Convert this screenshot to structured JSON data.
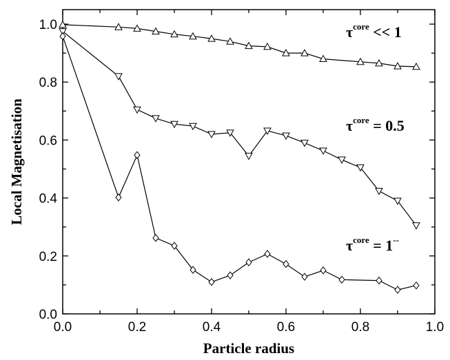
{
  "chart_data": {
    "type": "line",
    "xlabel": "Particle radius",
    "ylabel": "Local Magnetisation",
    "xlim": [
      0.0,
      1.0
    ],
    "ylim": [
      0.0,
      1.05
    ],
    "x_ticks": [
      "0.0",
      "0.2",
      "0.4",
      "0.6",
      "0.8",
      "1.0"
    ],
    "y_ticks": [
      "0.0",
      "0.2",
      "0.4",
      "0.6",
      "0.8",
      "1.0"
    ],
    "grid": false,
    "legend": "none",
    "series": [
      {
        "label_tau": "τ",
        "label_sup": "core",
        "label_rest": " << 1",
        "marker": "triangle-up",
        "x": [
          0.0,
          0.15,
          0.2,
          0.25,
          0.3,
          0.35,
          0.4,
          0.45,
          0.5,
          0.55,
          0.6,
          0.65,
          0.7,
          0.8,
          0.85,
          0.9,
          0.95
        ],
        "y": [
          0.998,
          0.99,
          0.985,
          0.975,
          0.965,
          0.958,
          0.95,
          0.94,
          0.925,
          0.922,
          0.9,
          0.9,
          0.88,
          0.87,
          0.865,
          0.855,
          0.853
        ]
      },
      {
        "label_tau": "τ",
        "label_sup": "core",
        "label_rest": " = 0.5",
        "marker": "triangle-down",
        "x": [
          0.0,
          0.15,
          0.2,
          0.25,
          0.3,
          0.35,
          0.4,
          0.45,
          0.5,
          0.55,
          0.6,
          0.65,
          0.7,
          0.75,
          0.8,
          0.85,
          0.9,
          0.95
        ],
        "y": [
          0.975,
          0.82,
          0.705,
          0.675,
          0.655,
          0.648,
          0.62,
          0.625,
          0.545,
          0.632,
          0.615,
          0.59,
          0.563,
          0.532,
          0.505,
          0.424,
          0.39,
          0.305
        ]
      },
      {
        "label_tau": "τ",
        "label_sup": "core",
        "label_rest": " = 1",
        "label_tail": "--",
        "marker": "diamond",
        "x": [
          0.0,
          0.15,
          0.2,
          0.25,
          0.3,
          0.35,
          0.4,
          0.45,
          0.5,
          0.55,
          0.6,
          0.65,
          0.7,
          0.75,
          0.85,
          0.9,
          0.95
        ],
        "y": [
          0.958,
          0.402,
          0.548,
          0.262,
          0.235,
          0.152,
          0.11,
          0.133,
          0.178,
          0.207,
          0.172,
          0.128,
          0.15,
          0.118,
          0.115,
          0.083,
          0.098
        ]
      }
    ]
  }
}
